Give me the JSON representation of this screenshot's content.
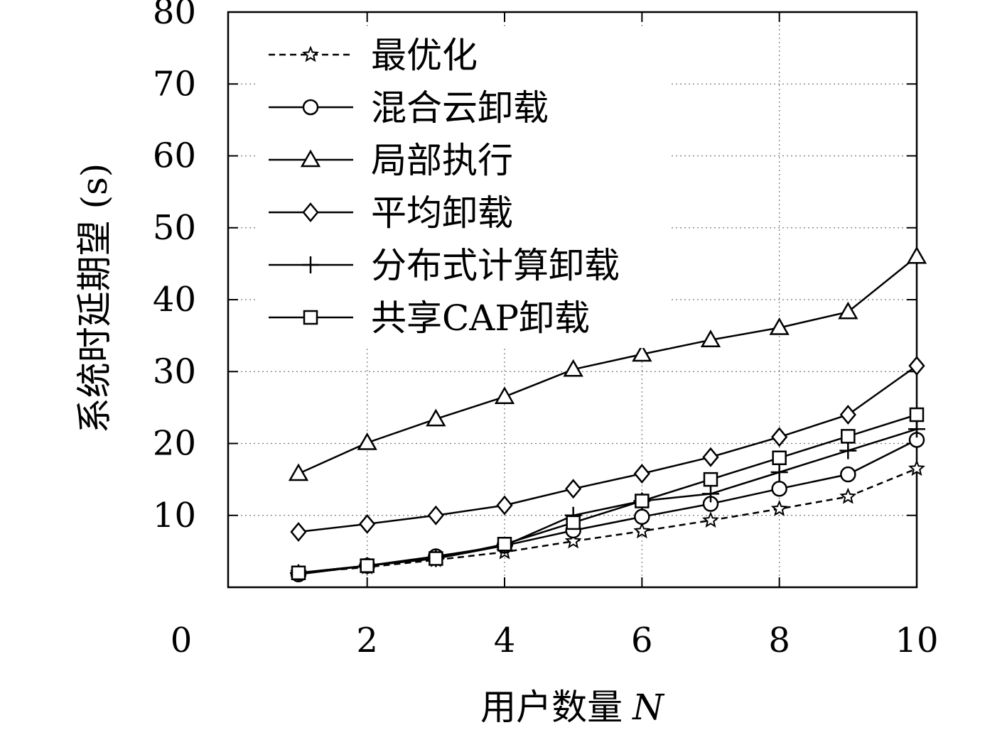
{
  "chart_data": {
    "type": "line",
    "xlabel": "用户数量",
    "xlabel_var": "N",
    "ylabel": "系统时延期望 (s)",
    "xlim": [
      1,
      10
    ],
    "ylim": [
      0,
      80
    ],
    "x_ticks": [
      {
        "value": 2,
        "label": "2"
      },
      {
        "value": 4,
        "label": "4"
      },
      {
        "value": 6,
        "label": "6"
      },
      {
        "value": 8,
        "label": "8"
      },
      {
        "value": 10,
        "label": "10"
      }
    ],
    "x_origin_label": "0",
    "y_ticks": [
      {
        "value": 10,
        "label": "10"
      },
      {
        "value": 20,
        "label": "20"
      },
      {
        "value": 30,
        "label": "30"
      },
      {
        "value": 40,
        "label": "40"
      },
      {
        "value": 50,
        "label": "50"
      },
      {
        "value": 60,
        "label": "60"
      },
      {
        "value": 70,
        "label": "70"
      },
      {
        "value": 80,
        "label": "80"
      }
    ],
    "grid": true,
    "legend_position": "top-left",
    "x": [
      1,
      2,
      3,
      4,
      5,
      6,
      7,
      8,
      9,
      10
    ],
    "series": [
      {
        "name": "最优化",
        "marker": "star",
        "dashed": true,
        "values": [
          2.0,
          2.8,
          3.8,
          4.9,
          6.4,
          7.8,
          9.3,
          10.9,
          12.6,
          16.5
        ]
      },
      {
        "name": "混合云卸载",
        "marker": "circle",
        "dashed": false,
        "values": [
          1.8,
          3.0,
          4.3,
          5.8,
          7.9,
          9.8,
          11.6,
          13.7,
          15.7,
          20.5
        ]
      },
      {
        "name": "局部执行",
        "marker": "triangle",
        "dashed": false,
        "values": [
          15.8,
          20.1,
          23.4,
          26.5,
          30.3,
          32.4,
          34.4,
          36.1,
          38.3,
          46.0
        ]
      },
      {
        "name": "平均卸载",
        "marker": "diamond",
        "dashed": false,
        "values": [
          7.7,
          8.8,
          10.0,
          11.4,
          13.7,
          15.8,
          18.1,
          20.9,
          24.0,
          30.8
        ]
      },
      {
        "name": "分布式计算卸载",
        "marker": "plus",
        "dashed": false,
        "values": [
          2.0,
          3.0,
          4.0,
          5.8,
          10.0,
          12.0,
          13.0,
          16.0,
          19.0,
          22.0
        ]
      },
      {
        "name": "共享CAP卸载",
        "marker": "square",
        "dashed": false,
        "values": [
          2.0,
          3.0,
          4.0,
          6.0,
          9.0,
          12.0,
          15.0,
          18.0,
          21.0,
          24.0
        ]
      }
    ]
  }
}
